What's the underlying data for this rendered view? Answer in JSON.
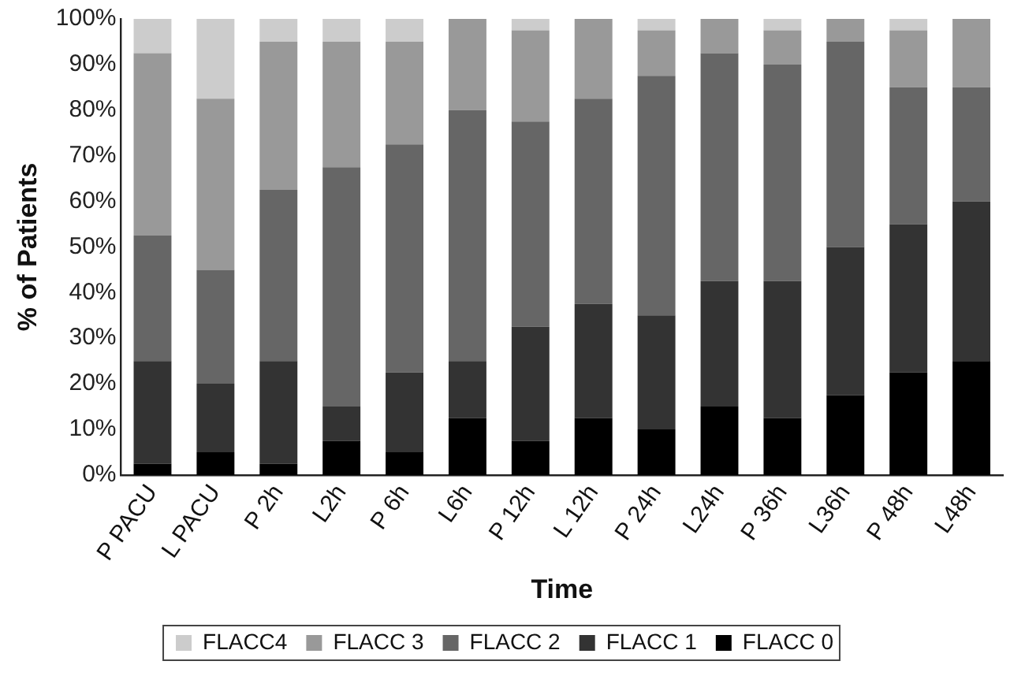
{
  "chart_data": {
    "type": "bar",
    "stacked": true,
    "xlabel": "Time",
    "ylabel": "% of Patients",
    "categories": [
      "P PACU",
      "L PACU",
      "P 2h",
      "L2h",
      "P 6h",
      "L6h",
      "P 12h",
      "L 12h",
      "P 24h",
      "L24h",
      "P 36h",
      "L36h",
      "P 48h",
      "L48h"
    ],
    "series": [
      {
        "name": "FLACC 0",
        "color": "#000000",
        "values": [
          2.5,
          5,
          2.5,
          7.5,
          5,
          12.5,
          7.5,
          12.5,
          10,
          15,
          12.5,
          17.5,
          22.5,
          25
        ]
      },
      {
        "name": "FLACC 1",
        "color": "#333333",
        "values": [
          22.5,
          15,
          22.5,
          7.5,
          17.5,
          12.5,
          25,
          25,
          25,
          27.5,
          30,
          32.5,
          32.5,
          35
        ]
      },
      {
        "name": "FLACC 2",
        "color": "#666666",
        "values": [
          27.5,
          25,
          37.5,
          52.5,
          50,
          55,
          45,
          45,
          52.5,
          50,
          47.5,
          45,
          30,
          25
        ]
      },
      {
        "name": "FLACC 3",
        "color": "#999999",
        "values": [
          40,
          37.5,
          32.5,
          27.5,
          22.5,
          20,
          20,
          17.5,
          10,
          7.5,
          7.5,
          5,
          12.5,
          15
        ]
      },
      {
        "name": "FLACC4",
        "color": "#cccccc",
        "values": [
          7.5,
          17.5,
          5,
          5,
          5,
          0,
          2.5,
          0,
          2.5,
          0,
          2.5,
          0,
          2.5,
          0
        ]
      }
    ],
    "ylim": [
      0,
      100
    ],
    "yticks": [
      {
        "value": 0,
        "label": "0%"
      },
      {
        "value": 10,
        "label": "10%"
      },
      {
        "value": 20,
        "label": "20%"
      },
      {
        "value": 30,
        "label": "30%"
      },
      {
        "value": 40,
        "label": "40%"
      },
      {
        "value": 50,
        "label": "50%"
      },
      {
        "value": 60,
        "label": "60%"
      },
      {
        "value": 70,
        "label": "70%"
      },
      {
        "value": 80,
        "label": "80%"
      },
      {
        "value": 90,
        "label": "90%"
      },
      {
        "value": 100,
        "label": "100%"
      }
    ],
    "grid": false,
    "legend": "bottom"
  }
}
